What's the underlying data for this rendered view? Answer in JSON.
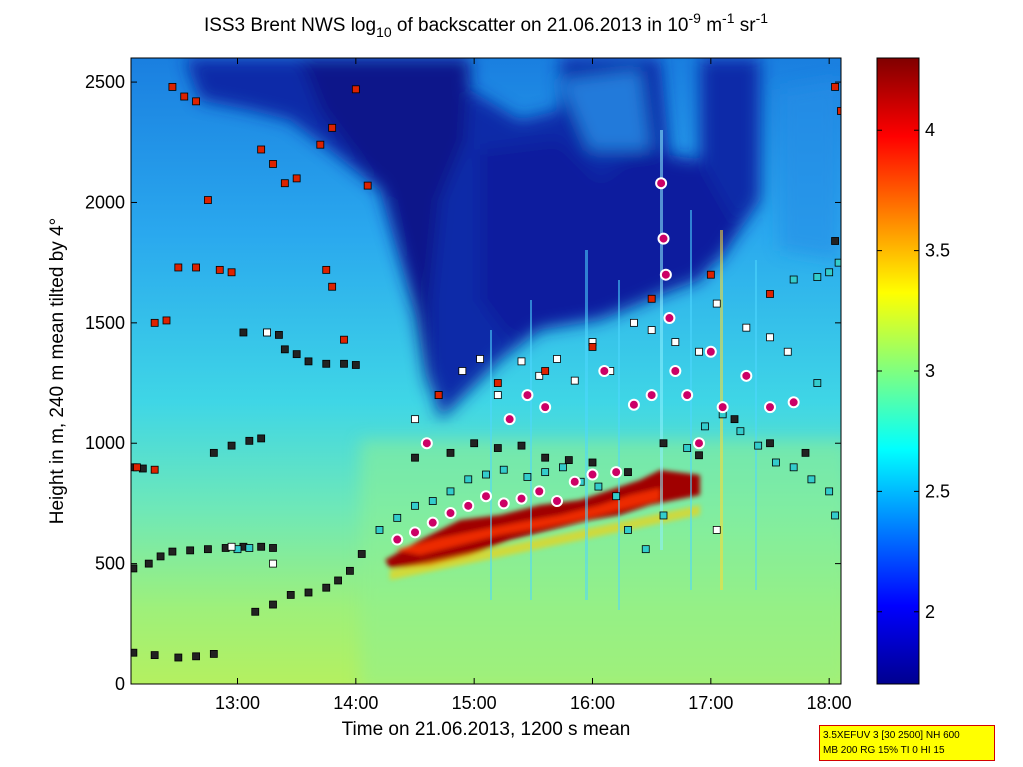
{
  "chart_data": {
    "type": "heatmap",
    "title_parts": {
      "prefix": "ISS3 Brent NWS log",
      "prefix_sub": "10",
      "mid": " of backscatter on 21.06.2013 in 10",
      "exp1": "-9",
      "mid2": " m",
      "exp2": "-1",
      "mid3": " sr",
      "exp3": "-1"
    },
    "xlabel": "Time on 21.06.2013, 1200 s mean",
    "ylabel": "Height in m, 240 m mean tilted by 4°",
    "xlim": [
      12.1,
      18.1
    ],
    "ylim": [
      0,
      2600
    ],
    "x_ticks": [
      {
        "value": 13,
        "label": "13:00"
      },
      {
        "value": 14,
        "label": "14:00"
      },
      {
        "value": 15,
        "label": "15:00"
      },
      {
        "value": 16,
        "label": "16:00"
      },
      {
        "value": 17,
        "label": "17:00"
      },
      {
        "value": 18,
        "label": "18:00"
      }
    ],
    "y_ticks": [
      0,
      500,
      1000,
      1500,
      2000,
      2500
    ],
    "colorbar": {
      "range": [
        1.7,
        4.3
      ],
      "ticks": [
        2,
        2.5,
        3,
        3.5,
        4
      ],
      "colormap": "jet"
    },
    "grid": false,
    "marker_series": [
      {
        "marker": "square",
        "color": "#222222",
        "points": [
          [
            12.12,
            480
          ],
          [
            12.25,
            500
          ],
          [
            12.35,
            530
          ],
          [
            12.45,
            550
          ],
          [
            12.6,
            555
          ],
          [
            12.75,
            560
          ],
          [
            12.9,
            565
          ],
          [
            13.05,
            570
          ],
          [
            13.2,
            570
          ],
          [
            13.3,
            565
          ],
          [
            13.15,
            300
          ],
          [
            13.3,
            330
          ],
          [
            13.45,
            370
          ],
          [
            13.6,
            380
          ],
          [
            13.75,
            400
          ],
          [
            13.85,
            430
          ],
          [
            13.95,
            470
          ],
          [
            14.05,
            540
          ],
          [
            12.12,
            130
          ],
          [
            12.3,
            120
          ],
          [
            12.5,
            110
          ],
          [
            12.65,
            115
          ],
          [
            12.8,
            125
          ],
          [
            12.12,
            900
          ],
          [
            12.2,
            895
          ],
          [
            12.8,
            960
          ],
          [
            12.95,
            990
          ],
          [
            13.1,
            1010
          ],
          [
            13.2,
            1020
          ],
          [
            13.05,
            1460
          ],
          [
            13.25,
            1460
          ],
          [
            13.35,
            1450
          ],
          [
            13.4,
            1390
          ],
          [
            13.5,
            1370
          ],
          [
            13.6,
            1340
          ],
          [
            13.75,
            1330
          ],
          [
            13.9,
            1330
          ],
          [
            14.0,
            1325
          ],
          [
            14.5,
            940
          ],
          [
            14.8,
            960
          ],
          [
            15.0,
            1000
          ],
          [
            15.2,
            980
          ],
          [
            15.4,
            990
          ],
          [
            15.6,
            940
          ],
          [
            15.8,
            930
          ],
          [
            16.0,
            920
          ],
          [
            16.3,
            880
          ],
          [
            16.6,
            1000
          ],
          [
            16.9,
            950
          ],
          [
            17.2,
            1100
          ],
          [
            17.5,
            1000
          ],
          [
            17.8,
            960
          ],
          [
            18.05,
            1840
          ]
        ]
      },
      {
        "marker": "square",
        "color": "#33cccc",
        "points": [
          [
            14.2,
            640
          ],
          [
            14.35,
            690
          ],
          [
            14.5,
            740
          ],
          [
            14.65,
            760
          ],
          [
            14.8,
            800
          ],
          [
            14.95,
            850
          ],
          [
            15.1,
            870
          ],
          [
            15.25,
            890
          ],
          [
            15.45,
            860
          ],
          [
            15.6,
            880
          ],
          [
            15.75,
            900
          ],
          [
            15.9,
            840
          ],
          [
            16.05,
            820
          ],
          [
            16.2,
            780
          ],
          [
            16.3,
            640
          ],
          [
            16.45,
            560
          ],
          [
            16.6,
            700
          ],
          [
            16.8,
            980
          ],
          [
            16.95,
            1070
          ],
          [
            17.1,
            1120
          ],
          [
            17.25,
            1050
          ],
          [
            17.4,
            990
          ],
          [
            17.55,
            920
          ],
          [
            17.7,
            900
          ],
          [
            17.85,
            850
          ],
          [
            18.0,
            800
          ],
          [
            18.05,
            700
          ],
          [
            17.9,
            1250
          ],
          [
            17.7,
            1680
          ],
          [
            17.9,
            1690
          ],
          [
            18.0,
            1710
          ],
          [
            18.08,
            1750
          ],
          [
            13.0,
            560
          ],
          [
            13.1,
            565
          ]
        ]
      },
      {
        "marker": "square",
        "color": "#ffffff",
        "points": [
          [
            14.5,
            1100
          ],
          [
            14.7,
            1200
          ],
          [
            14.9,
            1300
          ],
          [
            15.05,
            1350
          ],
          [
            15.2,
            1200
          ],
          [
            15.4,
            1340
          ],
          [
            15.55,
            1280
          ],
          [
            15.7,
            1350
          ],
          [
            15.85,
            1260
          ],
          [
            16.0,
            1420
          ],
          [
            16.15,
            1300
          ],
          [
            16.35,
            1500
          ],
          [
            16.5,
            1470
          ],
          [
            16.7,
            1420
          ],
          [
            16.9,
            1380
          ],
          [
            17.05,
            1580
          ],
          [
            17.3,
            1480
          ],
          [
            17.5,
            1440
          ],
          [
            17.65,
            1380
          ],
          [
            12.95,
            570
          ],
          [
            13.3,
            500
          ],
          [
            13.25,
            1460
          ],
          [
            17.05,
            640
          ]
        ]
      },
      {
        "marker": "square",
        "color": "#dd2200",
        "points": [
          [
            12.45,
            2480
          ],
          [
            12.55,
            2440
          ],
          [
            12.65,
            2420
          ],
          [
            12.75,
            2010
          ],
          [
            12.3,
            1500
          ],
          [
            12.4,
            1510
          ],
          [
            12.5,
            1730
          ],
          [
            12.65,
            1730
          ],
          [
            12.85,
            1720
          ],
          [
            12.95,
            1710
          ],
          [
            13.2,
            2220
          ],
          [
            13.3,
            2160
          ],
          [
            13.4,
            2080
          ],
          [
            13.5,
            2100
          ],
          [
            13.7,
            2240
          ],
          [
            13.8,
            2310
          ],
          [
            14.0,
            2470
          ],
          [
            14.1,
            2070
          ],
          [
            13.75,
            1720
          ],
          [
            13.8,
            1650
          ],
          [
            13.9,
            1430
          ],
          [
            12.15,
            900
          ],
          [
            12.3,
            890
          ],
          [
            14.7,
            1200
          ],
          [
            15.2,
            1250
          ],
          [
            15.6,
            1300
          ],
          [
            16.0,
            1400
          ],
          [
            16.5,
            1600
          ],
          [
            17.0,
            1700
          ],
          [
            17.5,
            1620
          ],
          [
            18.05,
            2480
          ],
          [
            18.1,
            2380
          ]
        ]
      },
      {
        "marker": "circle",
        "color": "#cc0066",
        "points": [
          [
            14.35,
            600
          ],
          [
            14.5,
            630
          ],
          [
            14.65,
            670
          ],
          [
            14.8,
            710
          ],
          [
            14.95,
            740
          ],
          [
            15.1,
            780
          ],
          [
            15.25,
            750
          ],
          [
            15.4,
            770
          ],
          [
            15.55,
            800
          ],
          [
            15.7,
            760
          ],
          [
            15.85,
            840
          ],
          [
            16.0,
            870
          ],
          [
            16.2,
            880
          ],
          [
            16.35,
            1160
          ],
          [
            16.5,
            1200
          ],
          [
            16.58,
            2080
          ],
          [
            16.6,
            1850
          ],
          [
            16.62,
            1700
          ],
          [
            16.65,
            1520
          ],
          [
            16.7,
            1300
          ],
          [
            16.8,
            1200
          ],
          [
            16.9,
            1000
          ],
          [
            17.0,
            1380
          ],
          [
            17.1,
            1150
          ],
          [
            17.3,
            1280
          ],
          [
            17.5,
            1150
          ],
          [
            17.7,
            1170
          ],
          [
            15.3,
            1100
          ],
          [
            15.45,
            1200
          ],
          [
            15.6,
            1150
          ],
          [
            14.6,
            1000
          ],
          [
            16.1,
            1300
          ]
        ]
      }
    ]
  },
  "info_box": {
    "line1": "3.5XEFUV 3 [30 2500] NH 600",
    "line2": "MB 200 RG 15% TI 0 HI 15"
  }
}
